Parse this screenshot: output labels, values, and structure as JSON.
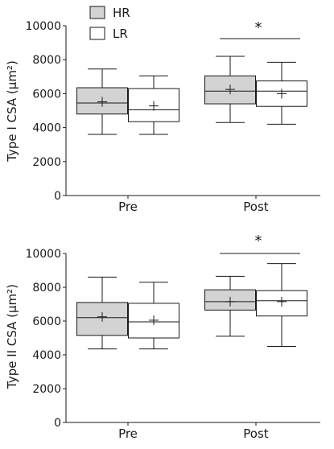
{
  "legend": [
    {
      "label": "HR",
      "color": "#d3d3d3"
    },
    {
      "label": "LR",
      "color": "#ffffff"
    }
  ],
  "chart_data": [
    {
      "type": "box",
      "ylabel": "Type I CSA (µm²)",
      "ylim": [
        0,
        10000
      ],
      "yticks": [
        0,
        2000,
        4000,
        6000,
        8000,
        10000
      ],
      "categories": [
        "Pre",
        "Post"
      ],
      "series": [
        {
          "name": "HR",
          "color": "#d3d3d3",
          "values": [
            {
              "min": 3600,
              "q1": 4800,
              "median": 5450,
              "q3": 6350,
              "max": 7450,
              "mean": 5520
            },
            {
              "min": 4300,
              "q1": 5400,
              "median": 6150,
              "q3": 7050,
              "max": 8200,
              "mean": 6250
            }
          ]
        },
        {
          "name": "LR",
          "color": "#ffffff",
          "values": [
            {
              "min": 3600,
              "q1": 4350,
              "median": 5050,
              "q3": 6300,
              "max": 7050,
              "mean": 5280
            },
            {
              "min": 4200,
              "q1": 5250,
              "median": 6150,
              "q3": 6750,
              "max": 7850,
              "mean": 6000
            }
          ]
        }
      ],
      "significance": {
        "category": "Post",
        "label": "*"
      }
    },
    {
      "type": "box",
      "ylabel": "Type II CSA (µm²)",
      "ylim": [
        0,
        10000
      ],
      "yticks": [
        0,
        2000,
        4000,
        6000,
        8000,
        10000
      ],
      "categories": [
        "Pre",
        "Post"
      ],
      "series": [
        {
          "name": "HR",
          "color": "#d3d3d3",
          "values": [
            {
              "min": 4350,
              "q1": 5150,
              "median": 6200,
              "q3": 7100,
              "max": 8600,
              "mean": 6250
            },
            {
              "min": 5100,
              "q1": 6650,
              "median": 7150,
              "q3": 7850,
              "max": 8650,
              "mean": 7150
            }
          ]
        },
        {
          "name": "LR",
          "color": "#ffffff",
          "values": [
            {
              "min": 4350,
              "q1": 5000,
              "median": 5950,
              "q3": 7050,
              "max": 8300,
              "mean": 6050
            },
            {
              "min": 4500,
              "q1": 6300,
              "median": 7200,
              "q3": 7800,
              "max": 9400,
              "mean": 7150
            }
          ]
        }
      ],
      "significance": {
        "category": "Post",
        "label": "*"
      }
    }
  ]
}
